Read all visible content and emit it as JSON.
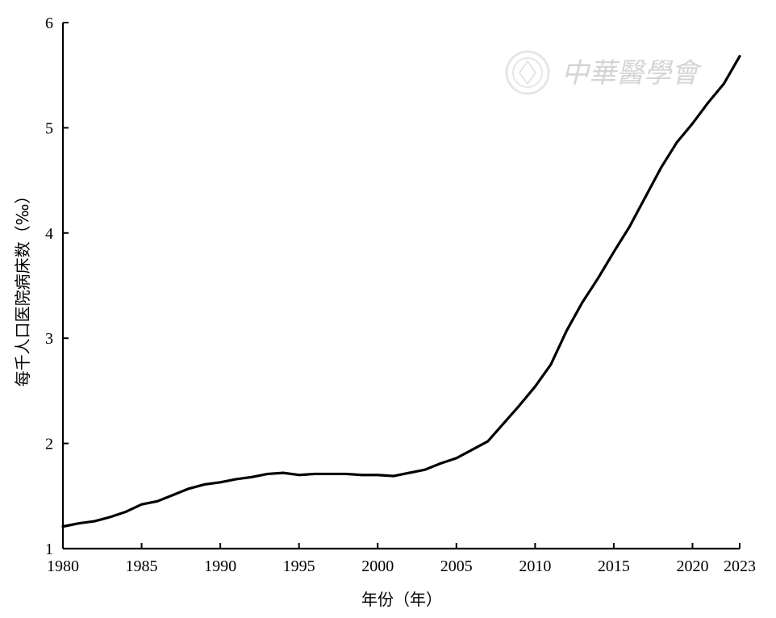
{
  "chart_data": {
    "type": "line",
    "xlabel": "年份（年）",
    "ylabel": "每千人口医院病床数（‰）",
    "xlim": [
      1980,
      2023
    ],
    "ylim": [
      1,
      6
    ],
    "x_ticks": [
      1980,
      1985,
      1990,
      1995,
      2000,
      2005,
      2010,
      2015,
      2020,
      2023
    ],
    "y_ticks": [
      1,
      2,
      3,
      4,
      5,
      6
    ],
    "grid": false,
    "x": [
      1980,
      1981,
      1982,
      1983,
      1984,
      1985,
      1986,
      1987,
      1988,
      1989,
      1990,
      1991,
      1992,
      1993,
      1994,
      1995,
      1996,
      1997,
      1998,
      1999,
      2000,
      2001,
      2002,
      2003,
      2004,
      2005,
      2006,
      2007,
      2008,
      2009,
      2010,
      2011,
      2012,
      2013,
      2014,
      2015,
      2016,
      2017,
      2018,
      2019,
      2020,
      2021,
      2022,
      2023
    ],
    "y": [
      1.21,
      1.24,
      1.26,
      1.3,
      1.35,
      1.42,
      1.45,
      1.51,
      1.57,
      1.61,
      1.63,
      1.66,
      1.68,
      1.71,
      1.72,
      1.7,
      1.71,
      1.71,
      1.71,
      1.7,
      1.7,
      1.69,
      1.72,
      1.75,
      1.81,
      1.86,
      1.94,
      2.02,
      2.19,
      2.36,
      2.54,
      2.75,
      3.07,
      3.34,
      3.57,
      3.82,
      4.06,
      4.34,
      4.62,
      4.86,
      5.04,
      5.24,
      5.42,
      5.68
    ]
  },
  "watermark": {
    "text": "中華醫學會"
  }
}
